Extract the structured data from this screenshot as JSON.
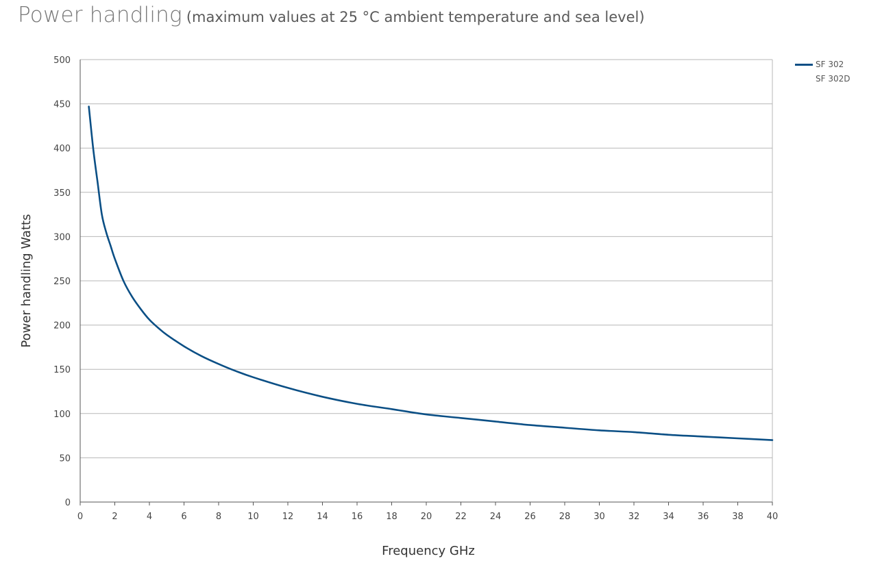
{
  "header": {
    "title": "Power handling",
    "subtitle": "(maximum values at 25 °C ambient temperature and sea level)"
  },
  "colors": {
    "line": "#0b4f85",
    "grid": "#b7b7b7",
    "axis": "#555555"
  },
  "chart_data": {
    "type": "line",
    "title": "Power handling",
    "subtitle": "(maximum values at 25 °C ambient temperature and sea level)",
    "xlabel": "Frequency GHz",
    "ylabel": "Power handling Watts",
    "xlim": [
      0,
      40
    ],
    "ylim": [
      0,
      500
    ],
    "xticks": [
      0,
      2,
      4,
      6,
      8,
      10,
      12,
      14,
      16,
      18,
      20,
      22,
      24,
      26,
      28,
      30,
      32,
      34,
      36,
      38,
      40
    ],
    "yticks": [
      0,
      50,
      100,
      150,
      200,
      250,
      300,
      350,
      400,
      450,
      500
    ],
    "grid": true,
    "legend_position": "right-top",
    "legend": [
      "SF 302",
      "SF 302D"
    ],
    "series": [
      {
        "name": "SF 302 / SF 302D",
        "x": [
          0.5,
          0.75,
          1,
          1.25,
          1.5,
          1.75,
          2,
          2.5,
          3,
          3.5,
          4,
          4.5,
          5,
          6,
          7,
          8,
          9,
          10,
          12,
          14,
          16,
          18,
          20,
          22,
          24,
          26,
          28,
          30,
          32,
          34,
          36,
          38,
          40
        ],
        "values": [
          447,
          400,
          362,
          325,
          305,
          290,
          275,
          250,
          232,
          218,
          206,
          197,
          189,
          176,
          165,
          156,
          148,
          141,
          129,
          119,
          111,
          105,
          99,
          95,
          91,
          87,
          84,
          81,
          79,
          76,
          74,
          72,
          70
        ]
      }
    ]
  }
}
